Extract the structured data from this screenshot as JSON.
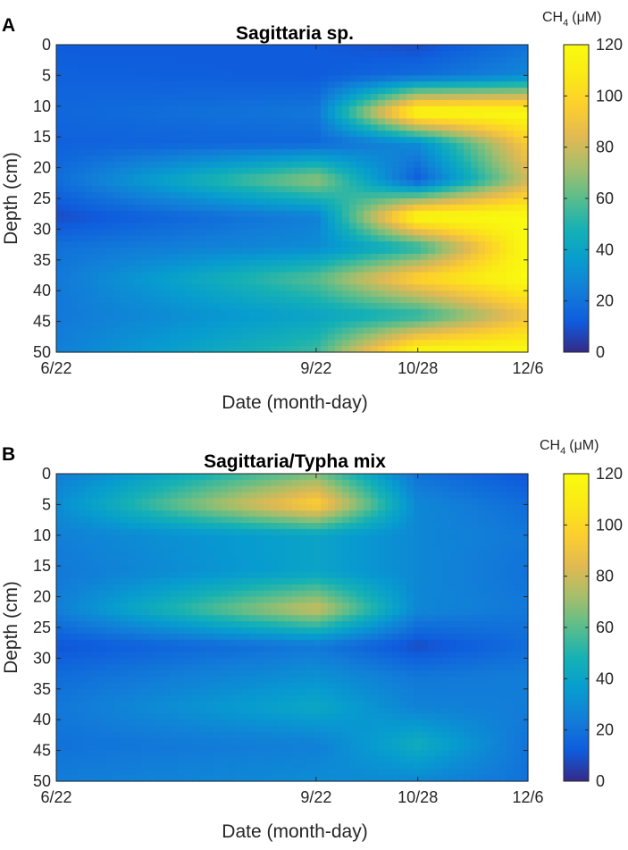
{
  "chart_data": [
    {
      "type": "heatmap",
      "panel_label": "A",
      "title": "Sagittaria sp.",
      "xlabel": "Date (month-day)",
      "ylabel": "Depth (cm)",
      "colorbar_label": "CH",
      "colorbar_subscript": "4",
      "colorbar_unit": "(μM)",
      "x_tick_labels": [
        "6/22",
        "9/22",
        "10/28",
        "12/6"
      ],
      "x_days": [
        0,
        92,
        128,
        167
      ],
      "y_ticks": [
        0,
        5,
        10,
        15,
        20,
        25,
        30,
        35,
        40,
        45,
        50
      ],
      "ylim": [
        0,
        50
      ],
      "clim": [
        0,
        120
      ],
      "colorbar_ticks": [
        0,
        20,
        40,
        60,
        80,
        100,
        120
      ],
      "colormap": "parula",
      "depths": [
        0,
        5,
        11,
        16,
        22,
        28,
        33,
        38,
        44,
        50
      ],
      "values": [
        [
          12,
          12,
          8,
          20
        ],
        [
          14,
          12,
          18,
          28
        ],
        [
          16,
          22,
          120,
          120
        ],
        [
          14,
          16,
          30,
          95
        ],
        [
          18,
          70,
          12,
          80
        ],
        [
          8,
          25,
          120,
          120
        ],
        [
          20,
          30,
          50,
          120
        ],
        [
          22,
          60,
          100,
          120
        ],
        [
          22,
          40,
          50,
          90
        ],
        [
          25,
          55,
          120,
          120
        ]
      ]
    },
    {
      "type": "heatmap",
      "panel_label": "B",
      "title": "Sagittaria/Typha mix",
      "xlabel": "Date (month-day)",
      "ylabel": "Depth (cm)",
      "colorbar_label": "CH",
      "colorbar_subscript": "4",
      "colorbar_unit": "(μM)",
      "x_tick_labels": [
        "6/22",
        "9/22",
        "10/28",
        "12/6"
      ],
      "x_days": [
        0,
        92,
        128,
        167
      ],
      "y_ticks": [
        0,
        5,
        10,
        15,
        20,
        25,
        30,
        35,
        40,
        45,
        50
      ],
      "ylim": [
        0,
        50
      ],
      "clim": [
        0,
        120
      ],
      "colorbar_ticks": [
        0,
        20,
        40,
        60,
        80,
        100,
        120
      ],
      "colormap": "parula",
      "depths": [
        0,
        5,
        10,
        16,
        22,
        28,
        33,
        38,
        44,
        50
      ],
      "values": [
        [
          24,
          65,
          20,
          10
        ],
        [
          30,
          98,
          28,
          18
        ],
        [
          25,
          40,
          28,
          22
        ],
        [
          22,
          40,
          28,
          20
        ],
        [
          25,
          80,
          28,
          22
        ],
        [
          10,
          22,
          8,
          18
        ],
        [
          18,
          32,
          22,
          24
        ],
        [
          22,
          42,
          26,
          24
        ],
        [
          20,
          25,
          45,
          20
        ],
        [
          24,
          30,
          28,
          20
        ]
      ]
    }
  ]
}
